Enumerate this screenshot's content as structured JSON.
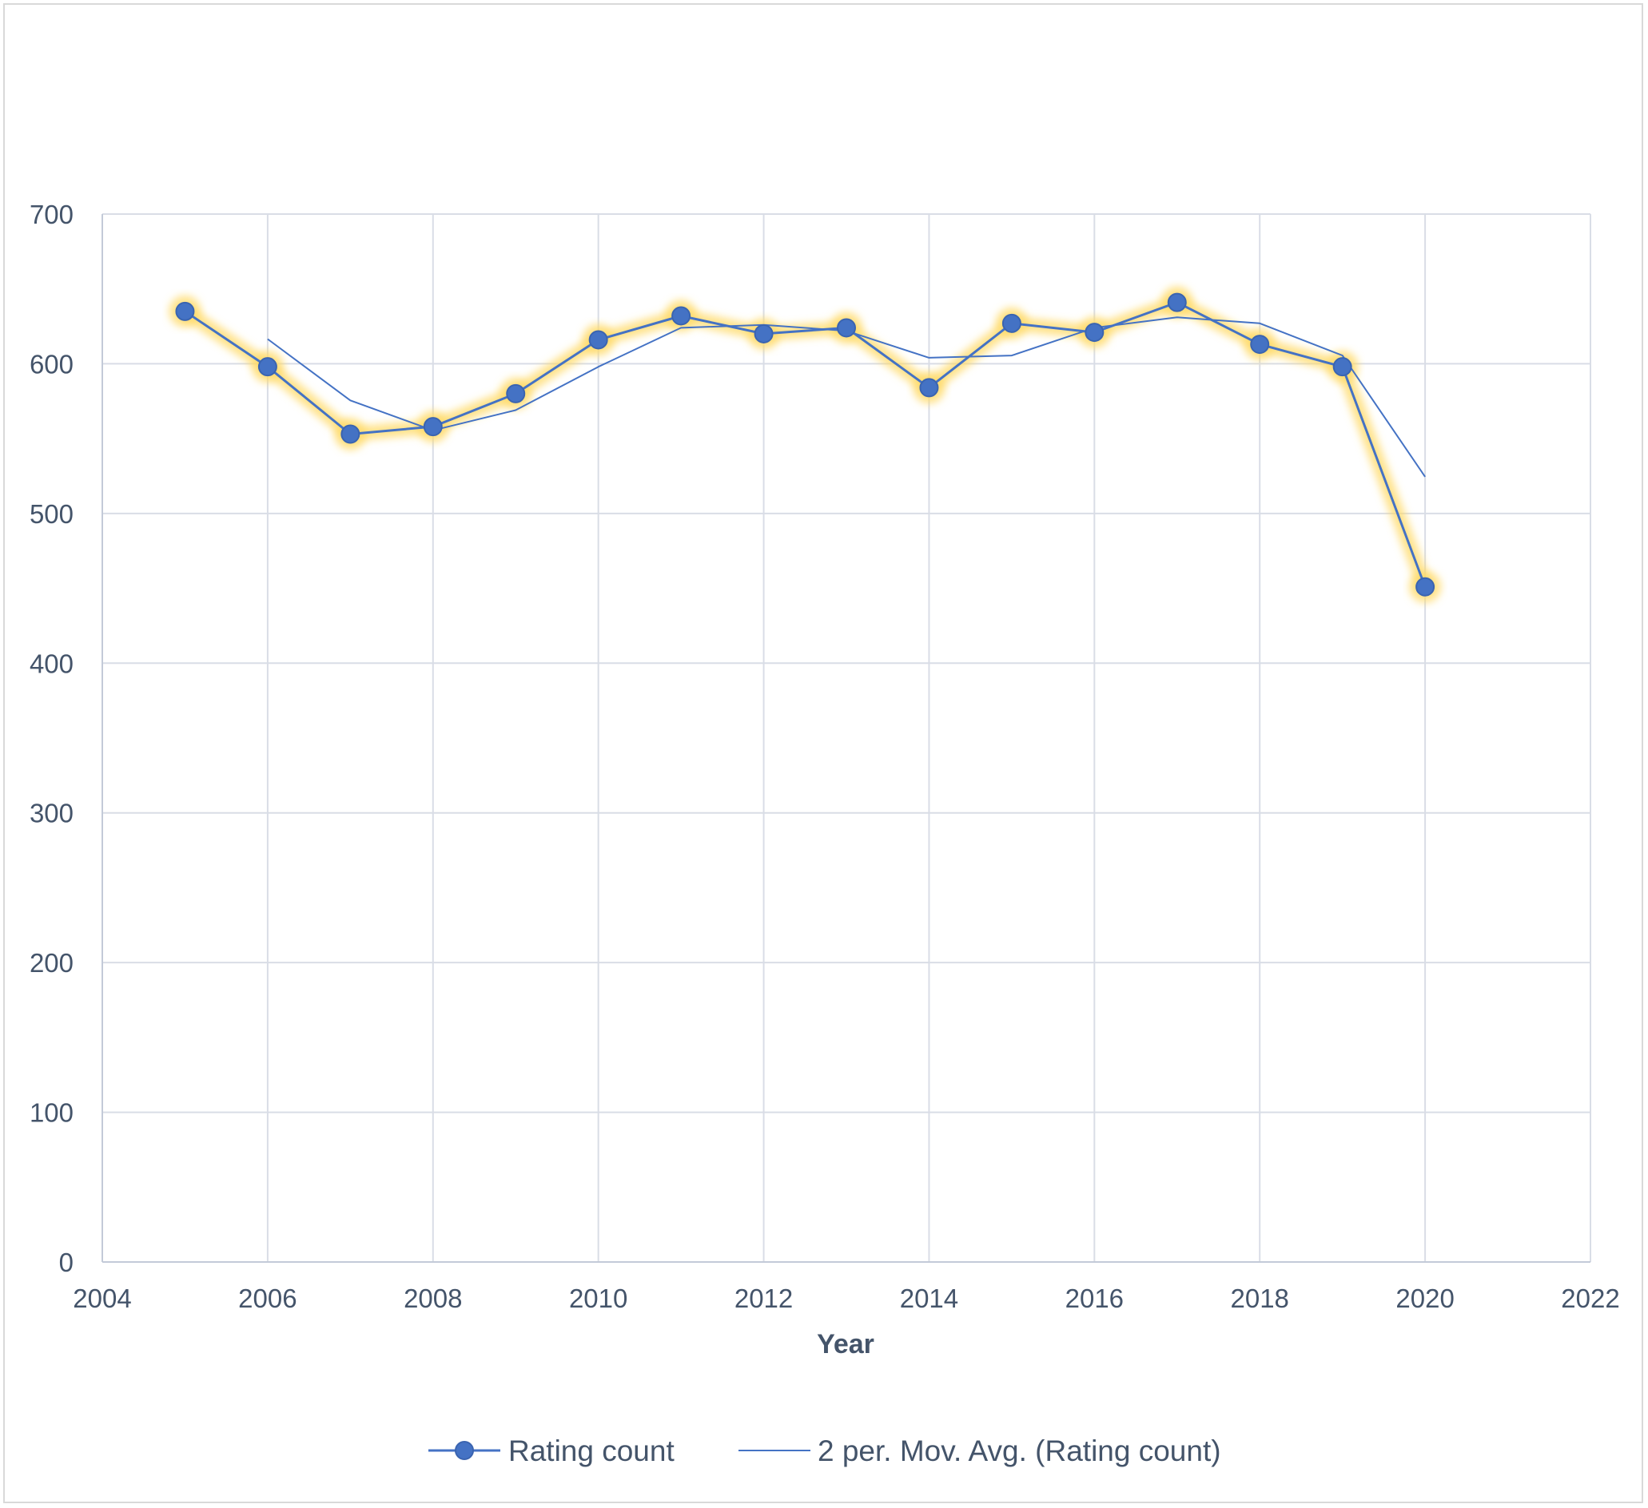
{
  "chart_data": {
    "type": "line",
    "title": "",
    "xlabel": "Year",
    "ylabel": "",
    "xlim": [
      2004,
      2022
    ],
    "ylim": [
      0,
      700
    ],
    "x_ticks": [
      2004,
      2006,
      2008,
      2010,
      2012,
      2014,
      2016,
      2018,
      2020,
      2022
    ],
    "y_ticks": [
      0,
      100,
      200,
      300,
      400,
      500,
      600,
      700
    ],
    "grid": true,
    "legend_position": "bottom",
    "series": [
      {
        "name": "Rating count",
        "style": "line-with-markers",
        "color": "#4472c4",
        "glow_color": "#ffd966",
        "x": [
          2005,
          2006,
          2007,
          2008,
          2009,
          2010,
          2011,
          2012,
          2013,
          2014,
          2015,
          2016,
          2017,
          2018,
          2019,
          2020
        ],
        "y": [
          635,
          598,
          553,
          558,
          580,
          616,
          632,
          620,
          624,
          584,
          627,
          621,
          641,
          613,
          598,
          451
        ]
      },
      {
        "name": "2 per. Mov. Avg. (Rating count)",
        "style": "thin-line",
        "color": "#4472c4",
        "x": [
          2006,
          2007,
          2008,
          2009,
          2010,
          2011,
          2012,
          2013,
          2014,
          2015,
          2016,
          2017,
          2018,
          2019,
          2020
        ],
        "y": [
          616.5,
          575.5,
          555.5,
          569,
          598,
          624,
          626,
          622,
          604,
          605.5,
          624,
          631,
          627,
          605.5,
          524.5
        ]
      }
    ]
  }
}
